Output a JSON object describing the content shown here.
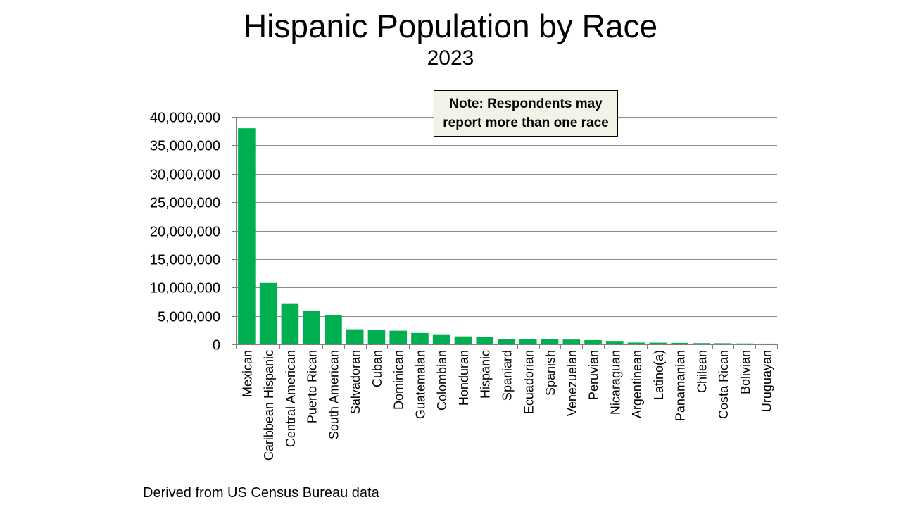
{
  "note": "Note: Respondents may report more than one race",
  "source": "Derived from US Census Bureau data",
  "colors": {
    "bar": "#00b050",
    "grid": "#8c8c8c",
    "axis": "#7f7f7f"
  },
  "chart_data": {
    "type": "bar",
    "title": "Hispanic Population by Race",
    "subtitle": "2023",
    "xlabel": "",
    "ylabel": "",
    "ylim": [
      0,
      40000000
    ],
    "yticks": [
      0,
      5000000,
      10000000,
      15000000,
      20000000,
      25000000,
      30000000,
      35000000,
      40000000
    ],
    "ytick_labels": [
      "0",
      "5,000,000",
      "10,000,000",
      "15,000,000",
      "20,000,000",
      "25,000,000",
      "30,000,000",
      "35,000,000",
      "40,000,000"
    ],
    "grid": true,
    "legend": "none",
    "categories": [
      "Mexican",
      "Caribbean Hispanic",
      "Central American",
      "Puerto Rican",
      "South American",
      "Salvadoran",
      "Cuban",
      "Dominican",
      "Guatemalan",
      "Colombian",
      "Honduran",
      "Hispanic",
      "Spaniard",
      "Ecuadorian",
      "Spanish",
      "Venezuelan",
      "Peruvian",
      "Nicaraguan",
      "Argentinean",
      "Latino(a)",
      "Panamanian",
      "Chilean",
      "Costa Rican",
      "Bolivian",
      "Uruguayan"
    ],
    "values": [
      38000000,
      10800000,
      7100000,
      5900000,
      5100000,
      2650000,
      2500000,
      2400000,
      2000000,
      1650000,
      1400000,
      1250000,
      900000,
      880000,
      870000,
      850000,
      750000,
      600000,
      320000,
      300000,
      260000,
      220000,
      200000,
      160000,
      130000
    ]
  }
}
